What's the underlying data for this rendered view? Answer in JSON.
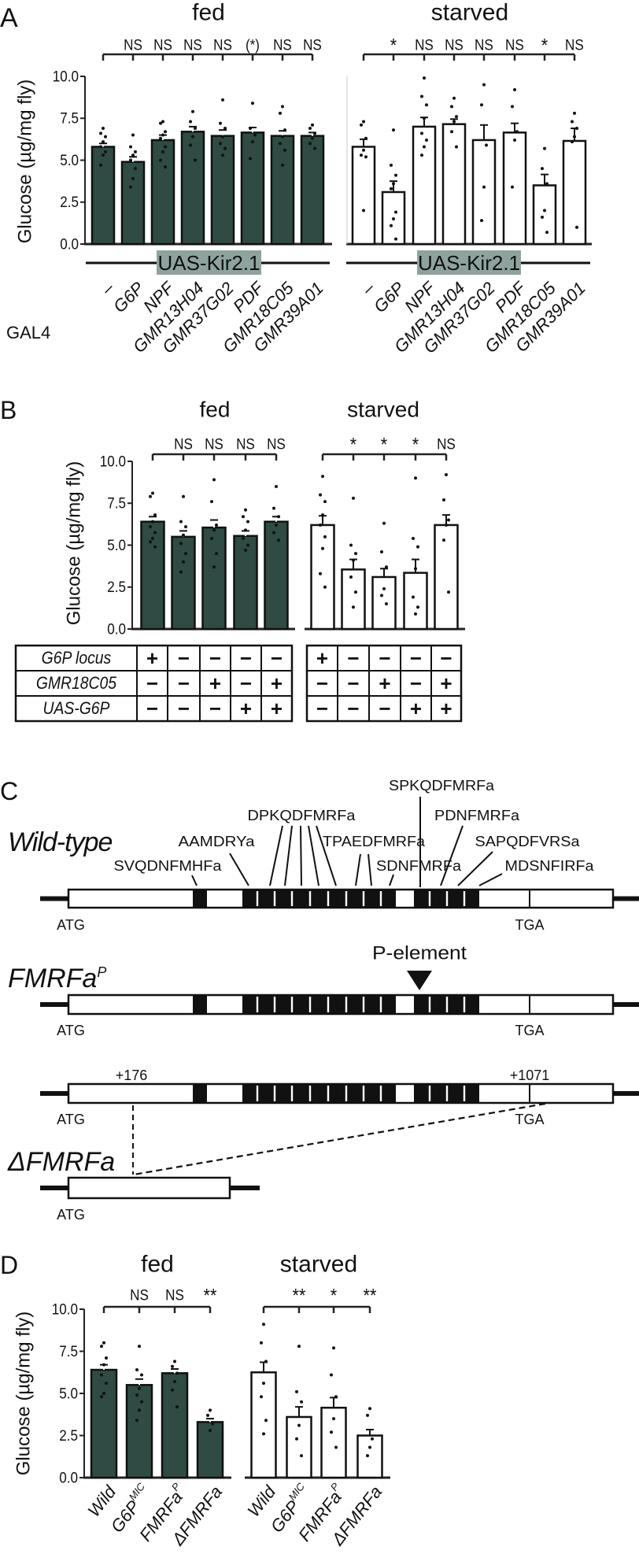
{
  "panel_letters": {
    "A": "A",
    "B": "B",
    "C": "C",
    "D": "D"
  },
  "colors": {
    "fed_bar": "#2f4b43",
    "starved_bar": "#ffffff",
    "uas_box": "#8fa39e",
    "ink": "#111111"
  },
  "panelA": {
    "row_label": "GAL4"
  },
  "chart_data": [
    {
      "panel": "A",
      "type": "bar",
      "title": "fed",
      "ylabel": "Glucose (µg/mg fly)",
      "ylim": [
        0,
        10
      ],
      "yticks": [
        "10.0",
        "7.5",
        "5.0",
        "2.5",
        "0.0"
      ],
      "group_label": "UAS-Kir2.1",
      "categories": [
        "–",
        "G6P",
        "NPF",
        "GMR13H04",
        "GMR37G02",
        "PDF",
        "GMR18C05",
        "GMR39A01"
      ],
      "values": [
        5.8,
        4.9,
        6.2,
        6.7,
        6.45,
        6.65,
        6.45,
        6.45
      ],
      "errors": [
        0.2,
        0.3,
        0.3,
        0.3,
        0.35,
        0.3,
        0.3,
        0.2
      ],
      "points": [
        [
          6.9,
          6.6,
          6.4,
          6.1,
          5.8,
          5.5,
          5.3,
          4.7
        ],
        [
          6.5,
          5.8,
          5.5,
          5.3,
          5.0,
          4.5,
          3.9,
          3.4
        ],
        [
          7.3,
          7.2,
          6.7,
          6.5,
          6.3,
          5.8,
          5.5,
          5.0,
          4.6
        ],
        [
          7.9,
          7.3,
          6.9,
          6.4,
          5.9,
          5.0
        ],
        [
          8.6,
          7.2,
          6.9,
          6.4,
          6.0,
          5.7,
          5.3
        ],
        [
          8.4,
          6.9,
          6.5,
          6.1,
          5.1
        ],
        [
          8.2,
          7.8,
          6.8,
          6.4,
          6.0,
          5.6,
          4.7
        ],
        [
          7.1,
          6.9,
          6.6,
          6.3,
          6.0,
          5.7
        ]
      ],
      "significance": [
        "",
        "NS",
        "NS",
        "NS",
        "NS",
        "(*)",
        "NS",
        "NS"
      ],
      "fill": "fed"
    },
    {
      "panel": "A",
      "type": "bar",
      "title": "starved",
      "ylim": [
        0,
        10
      ],
      "group_label": "UAS-Kir2.1",
      "categories": [
        "–",
        "G6P",
        "NPF",
        "GMR13H04",
        "GMR37G02",
        "PDF",
        "GMR18C05",
        "GMR39A01"
      ],
      "values": [
        5.8,
        3.1,
        7.0,
        7.15,
        6.2,
        6.65,
        3.5,
        6.15
      ],
      "errors": [
        0.45,
        0.65,
        0.55,
        0.3,
        0.9,
        0.55,
        0.65,
        0.75
      ],
      "points": [
        [
          7.3,
          7.1,
          6.3,
          5.6,
          5.3,
          5.2,
          2.0
        ],
        [
          6.8,
          4.7,
          4.1,
          3.6,
          3.3,
          1.9,
          1.5,
          1.1,
          0.3
        ],
        [
          9.9,
          8.8,
          8.3,
          7.5,
          6.6,
          6.2,
          5.8,
          5.3
        ],
        [
          8.7,
          8.2,
          7.6,
          7.3,
          6.7,
          5.8
        ],
        [
          9.5,
          8.3,
          5.9,
          3.4,
          1.4
        ],
        [
          9.2,
          8.2,
          6.7,
          6.2,
          3.4
        ],
        [
          5.7,
          4.5,
          3.6,
          2.0,
          1.6,
          0.7
        ],
        [
          7.8,
          7.3,
          6.9,
          6.4,
          6.1,
          1.0
        ]
      ],
      "significance": [
        "",
        "*",
        "NS",
        "NS",
        "NS",
        "NS",
        "*",
        "NS"
      ],
      "fill": "starved"
    },
    {
      "panel": "B",
      "type": "bar",
      "title": "fed",
      "ylabel": "Glucose (µg/mg fly)",
      "ylim": [
        0,
        10
      ],
      "yticks": [
        "10.0",
        "7.5",
        "5.0",
        "2.5",
        "0.0"
      ],
      "values": [
        6.4,
        5.5,
        6.05,
        5.55,
        6.4
      ],
      "errors": [
        0.3,
        0.35,
        0.45,
        0.3,
        0.3
      ],
      "points": [
        [
          8.1,
          7.9,
          6.8,
          6.4,
          6.1,
          5.75,
          5.4,
          5.2,
          4.9
        ],
        [
          7.9,
          6.4,
          6.1,
          5.6,
          5.1,
          4.5,
          4.0,
          3.4
        ],
        [
          8.9,
          7.6,
          6.2,
          5.9,
          5.4,
          4.5,
          3.7
        ],
        [
          7.1,
          6.7,
          6.4,
          5.9,
          5.4,
          5.0,
          4.7
        ],
        [
          8.5,
          7.2,
          6.7,
          6.2,
          5.75,
          5.3
        ]
      ],
      "significance": [
        "",
        "NS",
        "NS",
        "NS",
        "NS"
      ],
      "fill": "fed",
      "genotype_table": [
        {
          "label": "G6P locus",
          "cells": [
            "+",
            "−",
            "−",
            "−",
            "−"
          ]
        },
        {
          "label": "GMR18C05",
          "cells": [
            "−",
            "−",
            "+",
            "−",
            "+"
          ]
        },
        {
          "label": "UAS-G6P",
          "cells": [
            "−",
            "−",
            "−",
            "+",
            "+"
          ]
        }
      ]
    },
    {
      "panel": "B",
      "type": "bar",
      "title": "starved",
      "ylim": [
        0,
        10
      ],
      "values": [
        6.2,
        3.55,
        3.1,
        3.35,
        6.2
      ],
      "errors": [
        0.55,
        0.6,
        0.5,
        0.8,
        0.6
      ],
      "points": [
        [
          9.1,
          8.0,
          7.6,
          6.8,
          6.2,
          5.5,
          4.8,
          3.3,
          2.5
        ],
        [
          7.8,
          5.0,
          4.5,
          4.1,
          3.1,
          2.2,
          1.3
        ],
        [
          6.3,
          4.6,
          3.7,
          2.4,
          2.0,
          1.5
        ],
        [
          9.0,
          5.4,
          4.9,
          3.6,
          1.9,
          1.3,
          0.9
        ],
        [
          9.2,
          7.7,
          6.5,
          6.2,
          5.3,
          2.2
        ]
      ],
      "significance": [
        "",
        "*",
        "*",
        "*",
        "NS"
      ],
      "fill": "starved",
      "genotype_table": [
        {
          "label": "",
          "cells": [
            "+",
            "−",
            "−",
            "−",
            "−"
          ]
        },
        {
          "label": "",
          "cells": [
            "−",
            "−",
            "+",
            "−",
            "+"
          ]
        },
        {
          "label": "",
          "cells": [
            "−",
            "−",
            "−",
            "+",
            "+"
          ]
        }
      ]
    },
    {
      "panel": "D",
      "type": "bar",
      "title": "fed",
      "ylabel": "Glucose (µg/mg fly)",
      "ylim": [
        0,
        10
      ],
      "yticks": [
        "10.0",
        "7.5",
        "5.0",
        "2.5",
        "0.0"
      ],
      "categories": [
        {
          "base": "Wild",
          "sup": ""
        },
        {
          "base": "G6P",
          "sup": "MIC"
        },
        {
          "base": "FMRFa",
          "sup": "P"
        },
        {
          "base": "ΔFMRFa",
          "sup": ""
        }
      ],
      "values": [
        6.4,
        5.5,
        6.2,
        3.3
      ],
      "errors": [
        0.3,
        0.35,
        0.25,
        0.2
      ],
      "points": [
        [
          8.0,
          7.8,
          7.1,
          6.7,
          6.1,
          5.6,
          5.0,
          4.8
        ],
        [
          7.8,
          6.4,
          6.1,
          5.3,
          4.9,
          4.5,
          4.0,
          3.4
        ],
        [
          6.9,
          6.6,
          6.2,
          5.7,
          5.2,
          4.2
        ],
        [
          4.0,
          3.7,
          3.2,
          2.8
        ]
      ],
      "significance": [
        "",
        "NS",
        "NS",
        "**"
      ],
      "fill": "fed"
    },
    {
      "panel": "D",
      "type": "bar",
      "title": "starved",
      "ylim": [
        0,
        10
      ],
      "categories": [
        {
          "base": "Wild",
          "sup": ""
        },
        {
          "base": "G6P",
          "sup": "MIC"
        },
        {
          "base": "FMRFa",
          "sup": "P"
        },
        {
          "base": "ΔFMRFa",
          "sup": ""
        }
      ],
      "values": [
        6.25,
        3.6,
        4.15,
        2.5
      ],
      "errors": [
        0.6,
        0.6,
        0.6,
        0.35
      ],
      "points": [
        [
          9.1,
          8.0,
          6.9,
          5.6,
          4.8,
          3.4,
          2.6
        ],
        [
          7.8,
          5.1,
          4.5,
          3.1,
          2.3,
          1.3
        ],
        [
          7.7,
          6.1,
          4.8,
          3.5,
          2.7,
          1.8
        ],
        [
          4.1,
          3.7,
          2.3,
          1.8,
          1.3
        ]
      ],
      "significance": [
        "",
        "**",
        "*",
        "**"
      ],
      "fill": "starved"
    }
  ],
  "diagram": {
    "peptides": [
      "SPKQDFMRFa",
      "DPKQDFMRFa",
      "PDNFMRFa",
      "AAMDRYa",
      "TPAEDFMRFa",
      "SAPQDFVRSa",
      "SVQDNFMHFa",
      "SDNFMRFa",
      "MDSNFIRFa"
    ],
    "wild_type_label": "Wild-type",
    "p_allele": {
      "base": "FMRFa",
      "sup": "P"
    },
    "p_element_label": "P-element",
    "deletion_label": "ΔFMRFa",
    "start_codon": "ATG",
    "stop_codon": "TGA",
    "deletion_start": "+176",
    "deletion_end": "+1071"
  }
}
